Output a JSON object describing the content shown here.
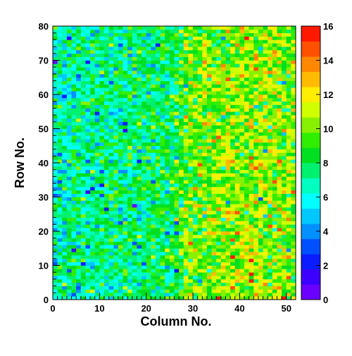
{
  "chart_data": {
    "type": "heatmap",
    "title": "",
    "xlabel": "Column No.",
    "ylabel": "Row No.",
    "x_range": [
      0,
      52
    ],
    "y_range": [
      0,
      80
    ],
    "n_columns": 52,
    "n_rows": 80,
    "x_ticks": [
      "0",
      "10",
      "20",
      "30",
      "40",
      "50"
    ],
    "x_tick_values": [
      0,
      10,
      20,
      30,
      40,
      50
    ],
    "y_ticks": [
      "0",
      "10",
      "20",
      "30",
      "40",
      "50",
      "60",
      "70",
      "80"
    ],
    "y_tick_values": [
      0,
      10,
      20,
      30,
      40,
      50,
      60,
      70,
      80
    ],
    "z_range": [
      0,
      16
    ],
    "colorbar_ticks": [
      "0",
      "2",
      "4",
      "6",
      "8",
      "10",
      "12",
      "14",
      "16"
    ],
    "colorbar_tick_values": [
      0,
      2,
      4,
      6,
      8,
      10,
      12,
      14,
      16
    ],
    "colormap": [
      "#6a00ff",
      "#3b00ff",
      "#0b1dff",
      "#0050ff",
      "#0090ff",
      "#00c8ff",
      "#00ffff",
      "#00ffc0",
      "#00f070",
      "#00e020",
      "#30ee00",
      "#88f000",
      "#d0ff00",
      "#ffee00",
      "#ffbb00",
      "#ff8800",
      "#ff5000",
      "#ff1800"
    ],
    "trend": "mean counts ~7 for columns 0-25 rising to ~10 for columns 28-52; values vary cell to cell",
    "mean_per_column": [
      6.5,
      6.8,
      6.9,
      7.0,
      7.1,
      7.0,
      7.2,
      7.1,
      7.3,
      7.2,
      7.3,
      7.4,
      7.3,
      7.5,
      7.4,
      7.5,
      7.6,
      7.5,
      7.7,
      7.6,
      7.8,
      7.7,
      7.9,
      7.9,
      8.0,
      8.2,
      8.6,
      9.1,
      9.5,
      9.7,
      9.8,
      9.9,
      10.0,
      10.1,
      10.2,
      10.2,
      10.3,
      10.4,
      10.4,
      10.5,
      10.6,
      10.6,
      10.7,
      10.7,
      10.6,
      10.6,
      10.5,
      10.4,
      10.3,
      10.2,
      10.0,
      9.8
    ]
  }
}
